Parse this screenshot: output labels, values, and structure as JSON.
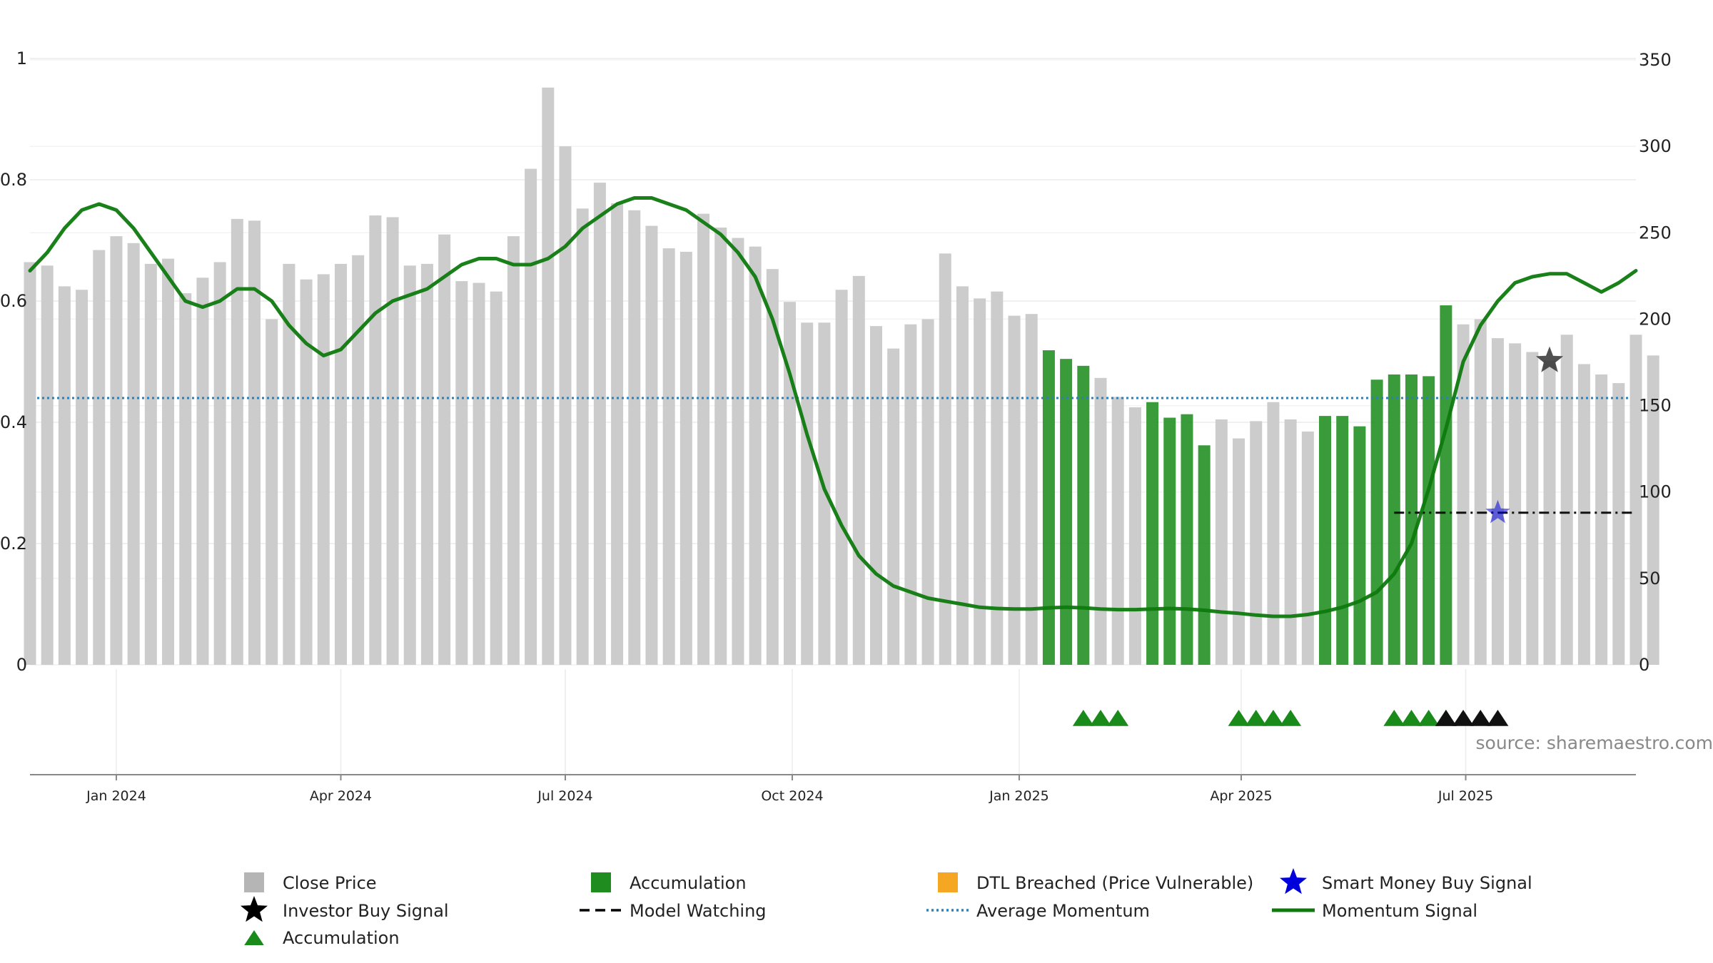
{
  "chart_data": {
    "type": "bar",
    "source_text": "source: sharemaestro.com",
    "x_tick_labels": [
      "Jan 2024",
      "Apr 2024",
      "Jul 2024",
      "Oct 2024",
      "Jan 2025",
      "Apr 2025",
      "Jul 2025"
    ],
    "x_tick_dates": [
      "2024-01-01",
      "2024-04-01",
      "2024-07-01",
      "2024-10-01",
      "2025-01-01",
      "2025-04-01",
      "2025-07-01"
    ],
    "x_range": [
      "2023-11-27",
      "2025-09-08"
    ],
    "y_left": {
      "ticks": [
        "0",
        "0.2",
        "0.4",
        "0.6",
        "0.8",
        "1"
      ],
      "range": [
        0,
        1
      ]
    },
    "y_right": {
      "ticks": [
        "0",
        "50",
        "100",
        "150",
        "200",
        "250",
        "300",
        "350"
      ],
      "range": [
        0,
        350
      ]
    },
    "grid": true,
    "colors": {
      "close_price": "#c8c8c8",
      "accumulation": "#2e962e",
      "momentum": "#0e7a0e",
      "average_momentum": "#2f7fb5",
      "smart_money": "#0000dd",
      "investor": "#111111",
      "dtl": "#f5a623"
    },
    "close_price": {
      "start": "2023-11-27",
      "step_days": 7,
      "values": [
        233,
        231,
        219,
        217,
        240,
        248,
        244,
        232,
        235,
        215,
        224,
        233,
        258,
        257,
        200,
        232,
        223,
        226,
        232,
        237,
        260,
        259,
        231,
        232,
        249,
        222,
        221,
        216,
        248,
        287,
        334,
        300,
        264,
        279,
        267,
        263,
        254,
        241,
        239,
        261,
        253,
        247,
        242,
        229,
        210,
        198,
        198,
        217,
        225,
        196,
        183,
        197,
        200,
        238,
        219,
        212,
        216,
        202,
        203,
        182,
        177,
        173,
        166,
        155,
        149,
        152,
        143,
        145,
        127,
        142,
        131,
        141,
        152,
        142,
        135,
        144,
        144,
        138,
        165,
        168,
        168,
        167,
        208,
        197,
        200,
        189,
        186,
        181,
        176,
        191,
        174,
        168,
        163,
        191,
        179
      ],
      "accumulation_flags": [
        0,
        0,
        0,
        0,
        0,
        0,
        0,
        0,
        0,
        0,
        0,
        0,
        0,
        0,
        0,
        0,
        0,
        0,
        0,
        0,
        0,
        0,
        0,
        0,
        0,
        0,
        0,
        0,
        0,
        0,
        0,
        0,
        0,
        0,
        0,
        0,
        0,
        0,
        0,
        0,
        0,
        0,
        0,
        0,
        0,
        0,
        0,
        0,
        0,
        0,
        0,
        0,
        0,
        0,
        0,
        0,
        0,
        0,
        0,
        1,
        1,
        1,
        0,
        0,
        0,
        1,
        1,
        1,
        1,
        0,
        0,
        0,
        0,
        0,
        0,
        1,
        1,
        1,
        1,
        1,
        1,
        1,
        1,
        0,
        0,
        0,
        0,
        0,
        0,
        0,
        0,
        0,
        0,
        0,
        0
      ]
    },
    "momentum_signal": {
      "start": "2023-11-27",
      "step_days": 7,
      "values": [
        0.65,
        0.68,
        0.72,
        0.75,
        0.76,
        0.75,
        0.72,
        0.68,
        0.64,
        0.6,
        0.59,
        0.6,
        0.62,
        0.62,
        0.6,
        0.56,
        0.53,
        0.51,
        0.52,
        0.55,
        0.58,
        0.6,
        0.61,
        0.62,
        0.64,
        0.66,
        0.67,
        0.67,
        0.66,
        0.66,
        0.67,
        0.69,
        0.72,
        0.74,
        0.76,
        0.77,
        0.77,
        0.76,
        0.75,
        0.73,
        0.71,
        0.68,
        0.64,
        0.57,
        0.48,
        0.38,
        0.29,
        0.23,
        0.18,
        0.15,
        0.13,
        0.12,
        0.11,
        0.105,
        0.1,
        0.095,
        0.093,
        0.092,
        0.092,
        0.094,
        0.095,
        0.094,
        0.092,
        0.091,
        0.091,
        0.092,
        0.093,
        0.092,
        0.09,
        0.087,
        0.085,
        0.082,
        0.08,
        0.08,
        0.083,
        0.088,
        0.095,
        0.105,
        0.12,
        0.15,
        0.2,
        0.29,
        0.39,
        0.5,
        0.56,
        0.6,
        0.63,
        0.64,
        0.645,
        0.645,
        0.63,
        0.615,
        0.63,
        0.65
      ]
    },
    "average_momentum": 0.44,
    "accumulation_markers": [
      "2025-01-27",
      "2025-02-03",
      "2025-02-10",
      "2025-03-31",
      "2025-04-07",
      "2025-04-14",
      "2025-04-21",
      "2025-06-02",
      "2025-06-09",
      "2025-06-16",
      "2025-06-23"
    ],
    "investor_markers": [
      "2025-06-23",
      "2025-06-30",
      "2025-07-07",
      "2025-07-14"
    ],
    "model_watching": {
      "from": "2025-06-02",
      "to": "2025-09-08",
      "price": 88
    },
    "smart_money_buy_signal": {
      "date": "2025-07-14",
      "price": 88
    },
    "investor_buy_signal": {
      "date": "2025-08-04",
      "price": 176
    },
    "legend": [
      {
        "label": "Close Price",
        "symbol": "square-grey"
      },
      {
        "label": "Accumulation",
        "symbol": "square-green"
      },
      {
        "label": "DTL Breached (Price Vulnerable)",
        "symbol": "square-orange"
      },
      {
        "label": "Smart Money Buy Signal",
        "symbol": "star-blue"
      },
      {
        "label": "Investor Buy Signal",
        "symbol": "star-black"
      },
      {
        "label": "Model Watching",
        "symbol": "dash-black"
      },
      {
        "label": "Average Momentum",
        "symbol": "dotted-blue"
      },
      {
        "label": "Momentum Signal",
        "symbol": "line-green"
      },
      {
        "label": "Accumulation",
        "symbol": "triangle-green"
      }
    ]
  }
}
